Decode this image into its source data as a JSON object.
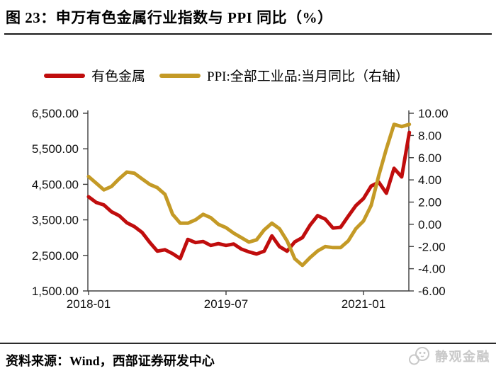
{
  "figure": {
    "title": "图 23：申万有色金属行业指数与 PPI 同比（%）",
    "source": "资料来源：Wind，西部证券研发中心",
    "watermark": "静观金融"
  },
  "legend": {
    "items": [
      {
        "label": "有色金属",
        "color": "#c00d0d"
      },
      {
        "label": "PPI:全部工业品:当月同比（右轴）",
        "color": "#c49a26"
      }
    ]
  },
  "chart_data": {
    "type": "line",
    "title": "申万有色金属行业指数与 PPI 同比（%）",
    "x": [
      "2018-01",
      "2018-02",
      "2018-03",
      "2018-04",
      "2018-05",
      "2018-06",
      "2018-07",
      "2018-08",
      "2018-09",
      "2018-10",
      "2018-11",
      "2018-12",
      "2019-01",
      "2019-02",
      "2019-03",
      "2019-04",
      "2019-05",
      "2019-06",
      "2019-07",
      "2019-08",
      "2019-09",
      "2019-10",
      "2019-11",
      "2019-12",
      "2020-01",
      "2020-02",
      "2020-03",
      "2020-04",
      "2020-05",
      "2020-06",
      "2020-07",
      "2020-08",
      "2020-09",
      "2020-10",
      "2020-11",
      "2020-12",
      "2021-01",
      "2021-02",
      "2021-03",
      "2021-04",
      "2021-05",
      "2021-06",
      "2021-07"
    ],
    "x_tick_labels": [
      "2018-01",
      "2019-07",
      "2021-01"
    ],
    "x_tick_indices": [
      0,
      18,
      36
    ],
    "left_axis": {
      "min": 1500,
      "max": 6500,
      "ticks": [
        "6,500.00",
        "5,500.00",
        "4,500.00",
        "3,500.00",
        "2,500.00",
        "1,500.00"
      ]
    },
    "right_axis": {
      "min": -6,
      "max": 10,
      "ticks": [
        "10.00",
        "8.00",
        "6.00",
        "4.00",
        "2.00",
        "0.00",
        "-2.00",
        "-4.00",
        "-6.00"
      ]
    },
    "grid": false,
    "legend_position": "top",
    "series": [
      {
        "name": "有色金属",
        "axis": "left",
        "color": "#c00d0d",
        "values": [
          4150,
          3990,
          3920,
          3730,
          3620,
          3420,
          3310,
          3150,
          2870,
          2620,
          2660,
          2550,
          2410,
          2950,
          2860,
          2890,
          2780,
          2830,
          2780,
          2820,
          2680,
          2600,
          2540,
          2620,
          3050,
          2750,
          2620,
          2880,
          3000,
          3350,
          3620,
          3520,
          3270,
          3290,
          3600,
          3900,
          4100,
          4450,
          4560,
          4250,
          4950,
          4710,
          5960
        ]
      },
      {
        "name": "PPI:全部工业品:当月同比（右轴）",
        "axis": "right",
        "color": "#c49a26",
        "values": [
          4.3,
          3.7,
          3.1,
          3.4,
          4.1,
          4.7,
          4.6,
          4.1,
          3.6,
          3.3,
          2.7,
          0.9,
          0.1,
          0.1,
          0.4,
          0.9,
          0.6,
          0.0,
          -0.3,
          -0.8,
          -1.2,
          -1.6,
          -1.4,
          -0.5,
          0.1,
          -0.4,
          -1.5,
          -3.1,
          -3.7,
          -3.0,
          -2.4,
          -2.0,
          -2.1,
          -2.1,
          -1.5,
          -0.4,
          0.3,
          1.7,
          4.4,
          6.8,
          9.0,
          8.8,
          9.0
        ]
      }
    ]
  }
}
